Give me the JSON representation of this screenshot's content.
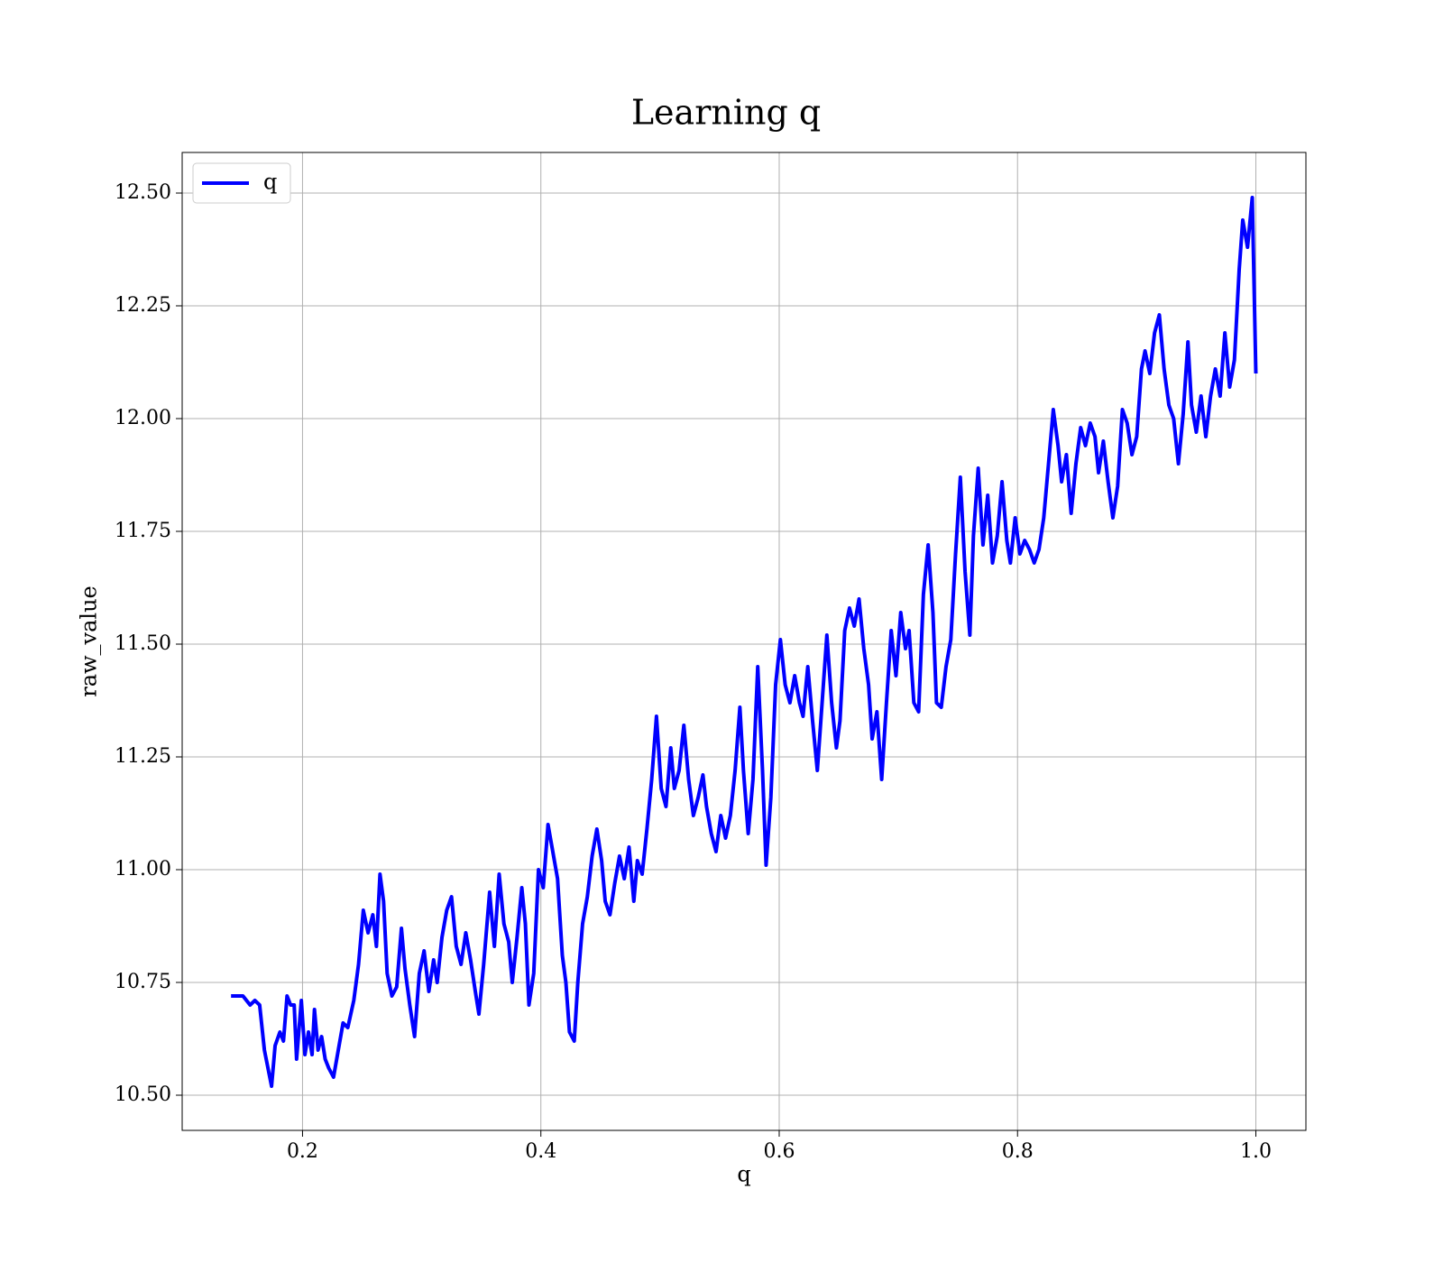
{
  "chart_data": {
    "type": "line",
    "title": "Learning q",
    "x_label": "q",
    "y_label": "raw_value",
    "xlim": [
      0.099,
      1.042
    ],
    "ylim": [
      10.422,
      12.59
    ],
    "xticks": [
      0.2,
      0.4,
      0.6,
      0.8,
      {
        "value": 1.0,
        "label": "1.0"
      }
    ],
    "yticks": [
      {
        "value": 10.5,
        "label": "10.50"
      },
      {
        "value": 10.75,
        "label": "10.75"
      },
      {
        "value": 11.0,
        "label": "11.00"
      },
      {
        "value": 11.25,
        "label": "11.25"
      },
      {
        "value": 11.5,
        "label": "11.50"
      },
      {
        "value": 11.75,
        "label": "11.75"
      },
      {
        "value": 12.0,
        "label": "12.00"
      },
      {
        "value": 12.25,
        "label": "12.25"
      },
      {
        "value": 12.5,
        "label": "12.50"
      }
    ],
    "grid": true,
    "legend": "upper left",
    "x": [
      0.14,
      0.15,
      0.156,
      0.16,
      0.164,
      0.168,
      0.174,
      0.177,
      0.181,
      0.184,
      0.187,
      0.19,
      0.193,
      0.195,
      0.199,
      0.202,
      0.205,
      0.208,
      0.21,
      0.213,
      0.216,
      0.219,
      0.222,
      0.226,
      0.23,
      0.234,
      0.238,
      0.243,
      0.247,
      0.251,
      0.255,
      0.259,
      0.262,
      0.265,
      0.268,
      0.271,
      0.275,
      0.279,
      0.283,
      0.286,
      0.29,
      0.294,
      0.298,
      0.302,
      0.306,
      0.31,
      0.313,
      0.317,
      0.321,
      0.325,
      0.329,
      0.333,
      0.337,
      0.341,
      0.345,
      0.348,
      0.352,
      0.357,
      0.361,
      0.365,
      0.369,
      0.373,
      0.376,
      0.38,
      0.384,
      0.387,
      0.39,
      0.394,
      0.398,
      0.402,
      0.406,
      0.41,
      0.414,
      0.418,
      0.421,
      0.424,
      0.428,
      0.431,
      0.435,
      0.439,
      0.443,
      0.447,
      0.451,
      0.454,
      0.458,
      0.462,
      0.466,
      0.47,
      0.474,
      0.478,
      0.481,
      0.485,
      0.489,
      0.493,
      0.497,
      0.501,
      0.505,
      0.509,
      0.512,
      0.516,
      0.52,
      0.524,
      0.528,
      0.532,
      0.536,
      0.539,
      0.543,
      0.547,
      0.551,
      0.555,
      0.559,
      0.563,
      0.567,
      0.57,
      0.574,
      0.578,
      0.582,
      0.586,
      0.589,
      0.593,
      0.597,
      0.601,
      0.605,
      0.609,
      0.613,
      0.617,
      0.62,
      0.624,
      0.628,
      0.632,
      0.636,
      0.64,
      0.644,
      0.648,
      0.651,
      0.655,
      0.659,
      0.663,
      0.667,
      0.671,
      0.675,
      0.678,
      0.682,
      0.686,
      0.69,
      0.694,
      0.698,
      0.702,
      0.706,
      0.709,
      0.713,
      0.717,
      0.721,
      0.725,
      0.729,
      0.732,
      0.736,
      0.74,
      0.744,
      0.748,
      0.752,
      0.756,
      0.76,
      0.763,
      0.767,
      0.771,
      0.775,
      0.779,
      0.783,
      0.787,
      0.791,
      0.794,
      0.798,
      0.802,
      0.806,
      0.81,
      0.814,
      0.818,
      0.822,
      0.826,
      0.83,
      0.834,
      0.837,
      0.841,
      0.845,
      0.849,
      0.853,
      0.857,
      0.861,
      0.865,
      0.868,
      0.872,
      0.876,
      0.88,
      0.884,
      0.888,
      0.892,
      0.896,
      0.9,
      0.904,
      0.907,
      0.911,
      0.915,
      0.919,
      0.923,
      0.927,
      0.931,
      0.935,
      0.939,
      0.943,
      0.946,
      0.95,
      0.954,
      0.958,
      0.962,
      0.966,
      0.97,
      0.974,
      0.978,
      0.982,
      0.986,
      0.989,
      0.993,
      0.997,
      1.0
    ],
    "series": [
      {
        "name": "q",
        "color": "#0000ff",
        "values": [
          10.72,
          10.72,
          10.7,
          10.71,
          10.7,
          10.6,
          10.52,
          10.61,
          10.64,
          10.62,
          10.72,
          10.7,
          10.7,
          10.58,
          10.71,
          10.59,
          10.64,
          10.59,
          10.69,
          10.6,
          10.63,
          10.58,
          10.56,
          10.54,
          10.6,
          10.66,
          10.65,
          10.71,
          10.79,
          10.91,
          10.86,
          10.9,
          10.83,
          10.99,
          10.93,
          10.77,
          10.72,
          10.74,
          10.87,
          10.78,
          10.7,
          10.63,
          10.77,
          10.82,
          10.73,
          10.8,
          10.75,
          10.85,
          10.91,
          10.94,
          10.83,
          10.79,
          10.86,
          10.8,
          10.73,
          10.68,
          10.79,
          10.95,
          10.83,
          10.99,
          10.88,
          10.84,
          10.75,
          10.85,
          10.96,
          10.88,
          10.7,
          10.77,
          11.0,
          10.96,
          11.1,
          11.04,
          10.98,
          10.81,
          10.75,
          10.64,
          10.62,
          10.75,
          10.88,
          10.94,
          11.03,
          11.09,
          11.02,
          10.93,
          10.9,
          10.97,
          11.03,
          10.98,
          11.05,
          10.93,
          11.02,
          10.99,
          11.09,
          11.2,
          11.34,
          11.18,
          11.14,
          11.27,
          11.18,
          11.22,
          11.32,
          11.2,
          11.12,
          11.16,
          11.21,
          11.14,
          11.08,
          11.04,
          11.12,
          11.07,
          11.12,
          11.22,
          11.36,
          11.22,
          11.08,
          11.2,
          11.45,
          11.22,
          11.01,
          11.16,
          11.41,
          11.51,
          11.41,
          11.37,
          11.43,
          11.37,
          11.34,
          11.45,
          11.33,
          11.22,
          11.37,
          11.52,
          11.37,
          11.27,
          11.33,
          11.53,
          11.58,
          11.54,
          11.6,
          11.49,
          11.41,
          11.29,
          11.35,
          11.2,
          11.37,
          11.53,
          11.43,
          11.57,
          11.49,
          11.53,
          11.37,
          11.35,
          11.61,
          11.72,
          11.57,
          11.37,
          11.36,
          11.45,
          11.51,
          11.7,
          11.87,
          11.66,
          11.52,
          11.74,
          11.89,
          11.72,
          11.83,
          11.68,
          11.74,
          11.86,
          11.73,
          11.68,
          11.78,
          11.7,
          11.73,
          11.71,
          11.68,
          11.71,
          11.78,
          11.9,
          12.02,
          11.94,
          11.86,
          11.92,
          11.79,
          11.9,
          11.98,
          11.94,
          11.99,
          11.96,
          11.88,
          11.95,
          11.86,
          11.78,
          11.85,
          12.02,
          11.99,
          11.92,
          11.96,
          12.11,
          12.15,
          12.1,
          12.19,
          12.23,
          12.11,
          12.03,
          12.0,
          11.9,
          12.01,
          12.17,
          12.03,
          11.97,
          12.05,
          11.96,
          12.05,
          12.11,
          12.05,
          12.19,
          12.07,
          12.13,
          12.33,
          12.44,
          12.38,
          12.49,
          12.1
        ]
      }
    ]
  }
}
